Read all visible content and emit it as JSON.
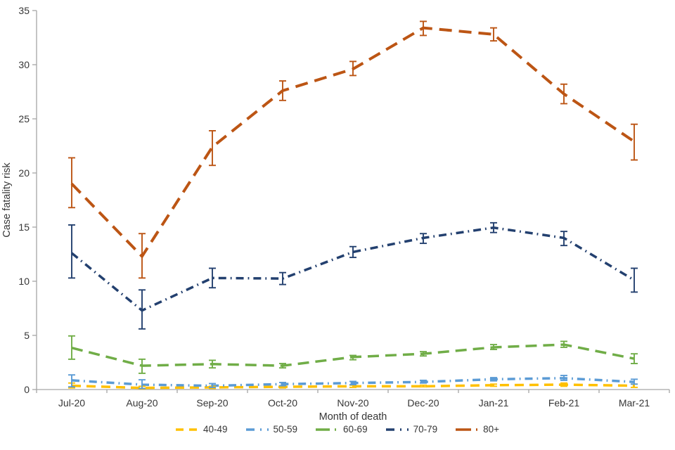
{
  "chart_data": {
    "type": "line",
    "title": "",
    "xlabel": "Month of death",
    "ylabel": "Case fatality risk",
    "x": [
      "Jul-20",
      "Aug-20",
      "Sep-20",
      "Oct-20",
      "Nov-20",
      "Dec-20",
      "Jan-21",
      "Feb-21",
      "Mar-21"
    ],
    "ylim": [
      0,
      35
    ],
    "yticks": [
      0,
      5,
      10,
      15,
      20,
      25,
      30,
      35
    ],
    "grid": false,
    "legend_position": "bottom",
    "axis_color": "#a6a6a6",
    "text_color": "#363636",
    "series": [
      {
        "name": "40-49",
        "color": "#FFC000",
        "dash": "13 8",
        "legend_dash": "11 8",
        "width": 3.5,
        "values": [
          0.35,
          0.15,
          0.2,
          0.25,
          0.3,
          0.3,
          0.4,
          0.45,
          0.35
        ],
        "ci_low": [
          0.15,
          0.05,
          0.1,
          0.15,
          0.2,
          0.25,
          0.3,
          0.3,
          0.2
        ],
        "ci_high": [
          0.6,
          0.3,
          0.3,
          0.35,
          0.4,
          0.4,
          0.5,
          0.6,
          0.5
        ]
      },
      {
        "name": "50-59",
        "color": "#5B9BD5",
        "dash": "11 6 1.8 6",
        "legend_dash": "12 8 2 8",
        "width": 3.5,
        "values": [
          0.85,
          0.45,
          0.35,
          0.5,
          0.6,
          0.7,
          0.95,
          1.05,
          0.7
        ],
        "ci_low": [
          0.25,
          0.1,
          0.2,
          0.35,
          0.45,
          0.6,
          0.8,
          0.85,
          0.5
        ],
        "ci_high": [
          1.35,
          0.9,
          0.55,
          0.65,
          0.75,
          0.85,
          1.1,
          1.3,
          0.95
        ]
      },
      {
        "name": "60-69",
        "color": "#70AD47",
        "dash": "16 9",
        "legend_dash": "20 7 2 7",
        "width": 3.5,
        "values": [
          3.85,
          2.2,
          2.35,
          2.2,
          3.0,
          3.3,
          3.9,
          4.15,
          2.85
        ],
        "ci_low": [
          2.8,
          1.5,
          2.0,
          2.0,
          2.75,
          3.1,
          3.7,
          3.9,
          2.4
        ],
        "ci_high": [
          4.95,
          2.8,
          2.7,
          2.4,
          3.15,
          3.5,
          4.15,
          4.45,
          3.3
        ]
      },
      {
        "name": "70-79",
        "color": "#23406F",
        "dash": "11 6 1.8 6",
        "legend_dash": "12 8 2 8",
        "width": 3.5,
        "values": [
          12.6,
          7.3,
          10.3,
          10.25,
          12.7,
          14.0,
          14.95,
          14.0,
          10.1
        ],
        "ci_low": [
          10.3,
          5.6,
          9.4,
          9.7,
          12.2,
          13.5,
          14.5,
          13.3,
          9.0
        ],
        "ci_high": [
          15.2,
          9.2,
          11.2,
          10.8,
          13.2,
          14.4,
          15.4,
          14.6,
          11.2
        ]
      },
      {
        "name": "80+",
        "color": "#BC5514",
        "dash": "18 10",
        "legend_dash": "22 7 2 7",
        "width": 4,
        "values": [
          19.0,
          12.3,
          22.4,
          27.6,
          29.6,
          33.4,
          32.8,
          27.3,
          22.9
        ],
        "ci_low": [
          16.8,
          10.3,
          20.7,
          26.7,
          29.0,
          32.7,
          32.2,
          26.4,
          21.2
        ],
        "ci_high": [
          21.4,
          14.4,
          23.9,
          28.5,
          30.3,
          34.0,
          33.4,
          28.2,
          24.5
        ]
      }
    ]
  }
}
